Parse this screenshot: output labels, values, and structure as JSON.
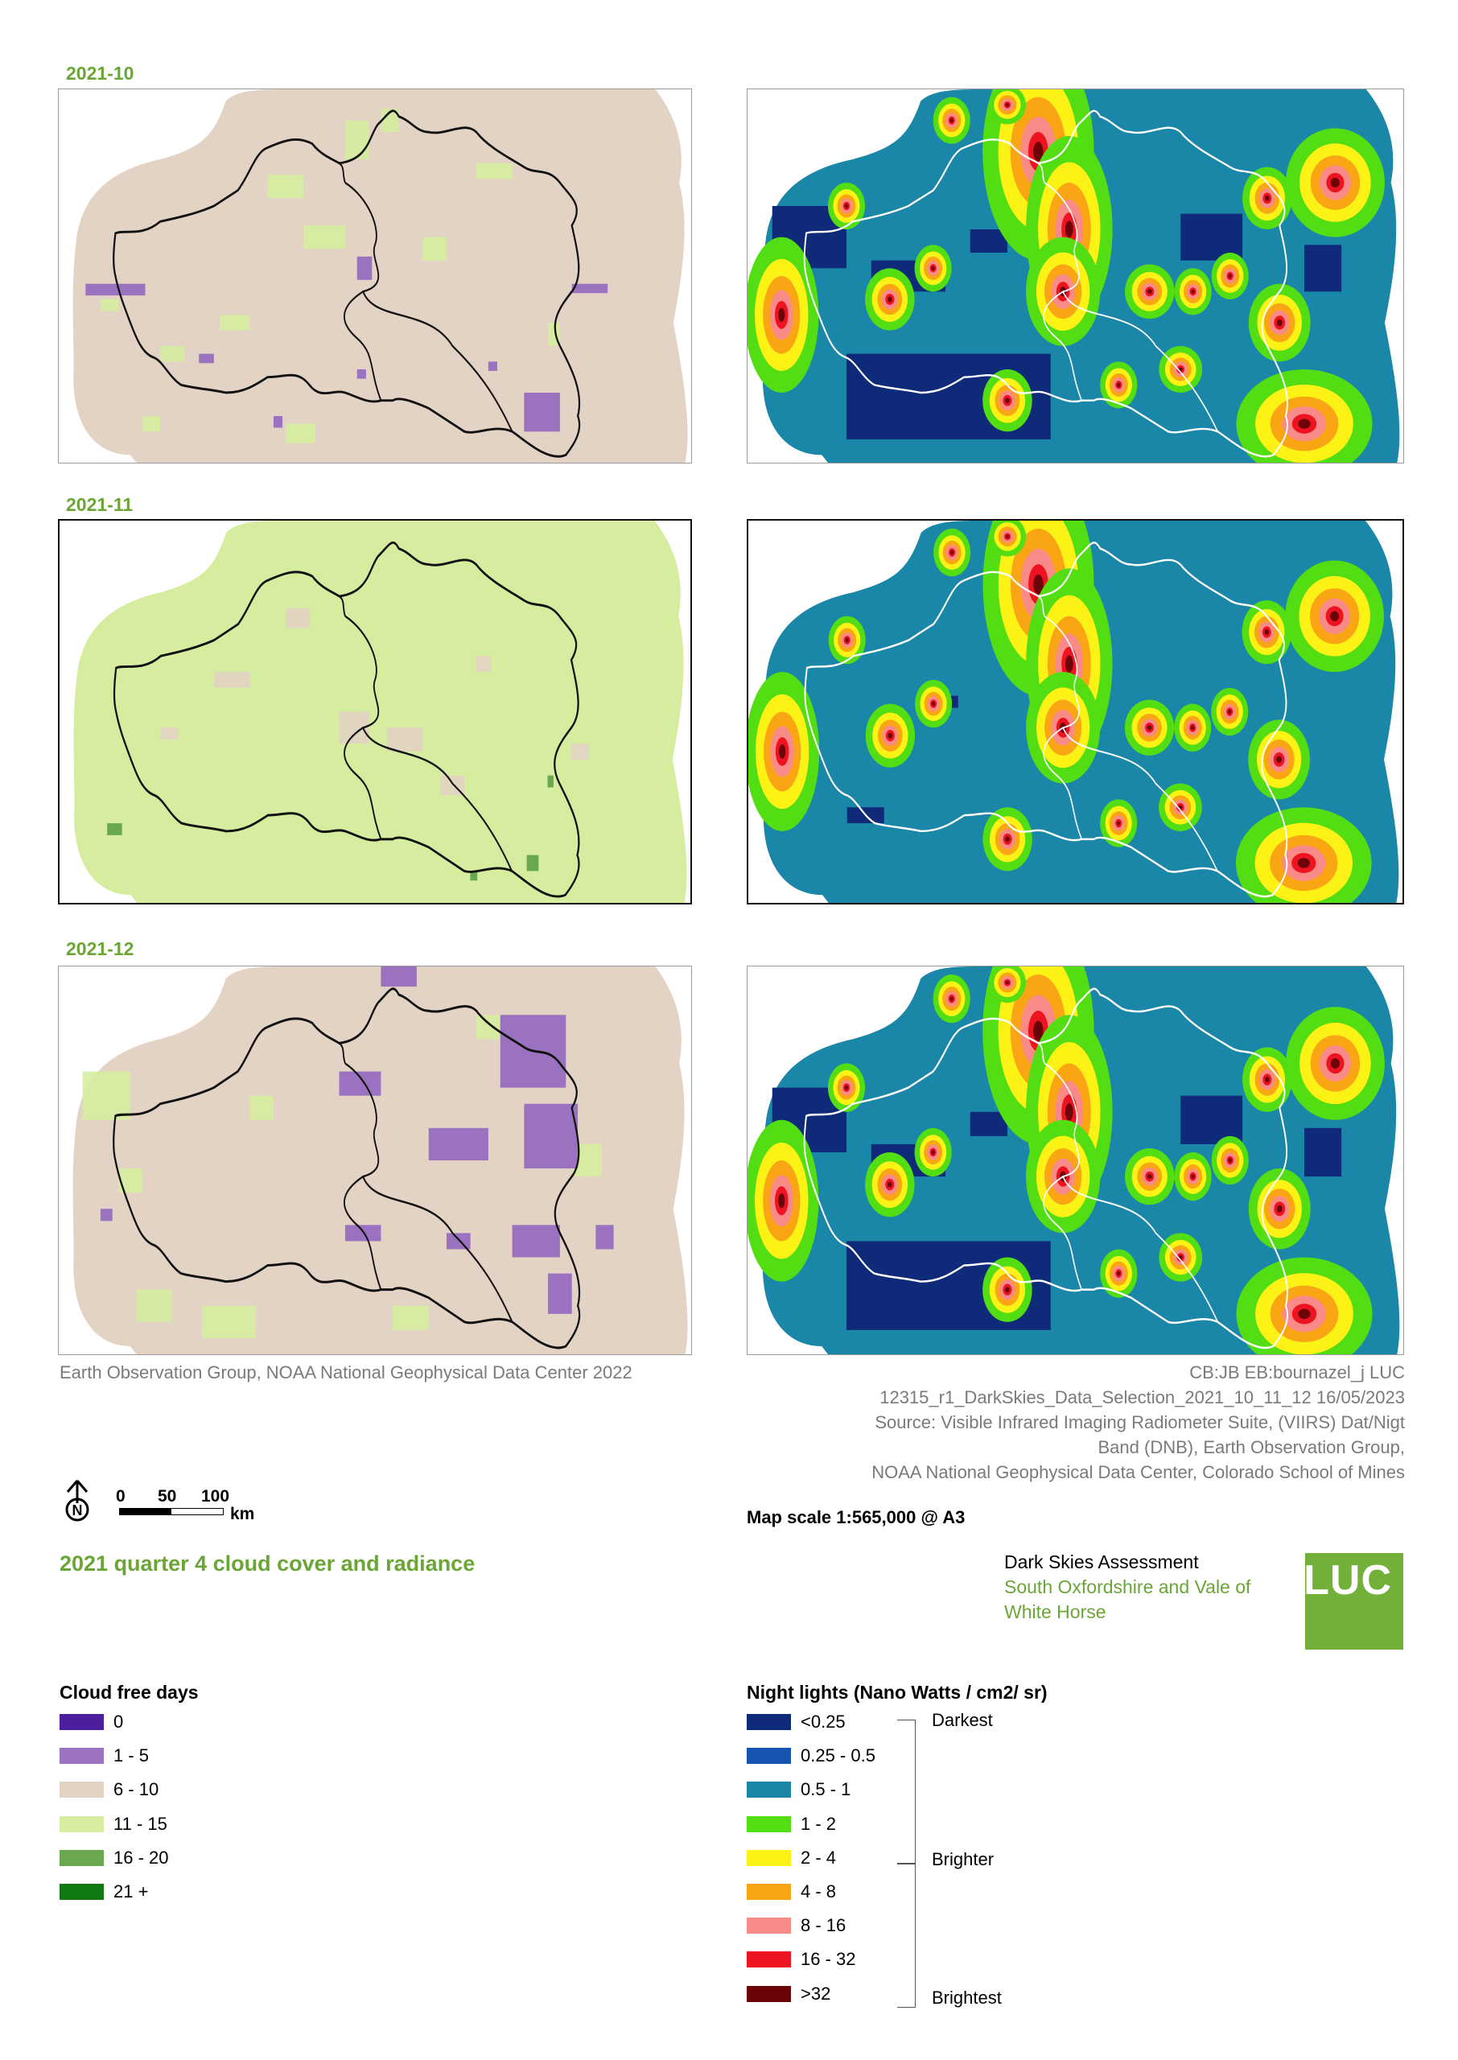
{
  "months": [
    {
      "label": "2021-10",
      "cloud_base": "#e3d3c4"
    },
    {
      "label": "2021-11",
      "cloud_base": "#d6eda0"
    },
    {
      "label": "2021-12",
      "cloud_base": "#e3d3c4"
    }
  ],
  "credits": {
    "left": "Earth Observation Group, NOAA National Geophysical Data Center 2022",
    "right_lines": [
      "CB:JB EB:bournazel_j LUC",
      "12315_r1_DarkSkies_Data_Selection_2021_10_11_12  16/05/2023",
      "Source: Visible Infrared Imaging Radiometer Suite, (VIIRS) Dat/Nigt",
      "Band (DNB), Earth Observation Group,",
      "NOAA National Geophysical Data Center, Colorado School of Mines"
    ]
  },
  "scale_bar": {
    "ticks": [
      "0",
      "50",
      "100"
    ],
    "unit": "km",
    "north": "N"
  },
  "map_scale": "Map scale 1:565,000 @ A3",
  "map_title": "2021 quarter 4 cloud cover and radiance",
  "project": {
    "title": "Dark Skies Assessment",
    "subtitle_lines": [
      "South Oxfordshire and Vale of",
      "White Horse"
    ],
    "logo": "LUC"
  },
  "legend_cloud": {
    "title": "Cloud free days",
    "items": [
      {
        "label": "0",
        "color": "#4b1e9e"
      },
      {
        "label": "1 - 5",
        "color": "#9a72bf"
      },
      {
        "label": "6 - 10",
        "color": "#e3d3c4"
      },
      {
        "label": "11 - 15",
        "color": "#d6eda0"
      },
      {
        "label": "16 - 20",
        "color": "#6aa84f"
      },
      {
        "label": "21 +",
        "color": "#0f7a12"
      }
    ]
  },
  "legend_lights": {
    "title": "Night lights (Nano Watts / cm2/ sr)",
    "items": [
      {
        "label": "<0.25",
        "color": "#0e2a78"
      },
      {
        "label": "0.25 - 0.5",
        "color": "#1554b0"
      },
      {
        "label": "0.5 - 1",
        "color": "#1a86a8"
      },
      {
        "label": "1 - 2",
        "color": "#52de12"
      },
      {
        "label": "2 - 4",
        "color": "#fcf215"
      },
      {
        "label": "4 - 8",
        "color": "#f9a514"
      },
      {
        "label": "8 - 16",
        "color": "#f98a88"
      },
      {
        "label": "16 - 32",
        "color": "#ee1321"
      },
      {
        "label": ">32",
        "color": "#6b0308"
      }
    ],
    "bracket_labels": [
      "Darkest",
      "Brighter",
      "Brightest"
    ]
  }
}
